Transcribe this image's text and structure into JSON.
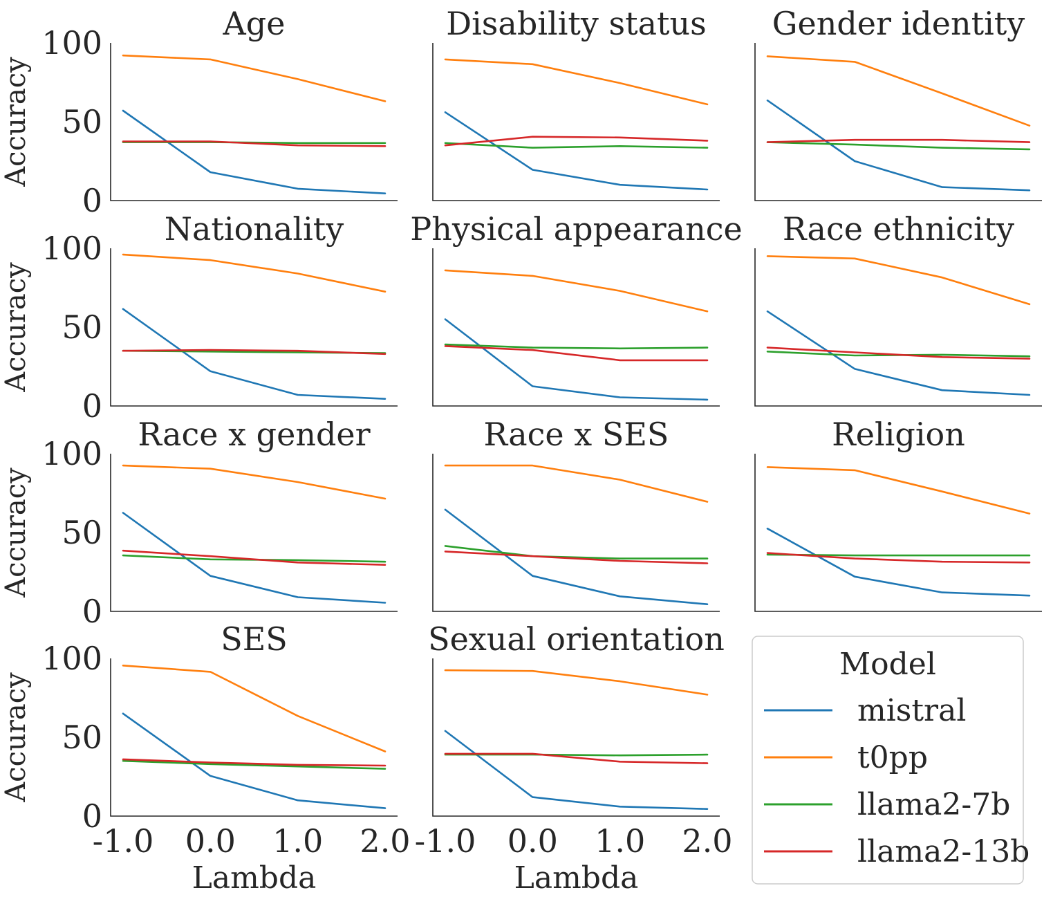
{
  "chart_data": {
    "type": "line",
    "x": [
      -1.0,
      0.0,
      1.0,
      2.0
    ],
    "xtick_labels": [
      "-1.0",
      "0.0",
      "1.0",
      "2.0"
    ],
    "ytick_labels": [
      "0",
      "50",
      "100"
    ],
    "ylim": [
      0,
      100
    ],
    "xlim": [
      -1.0,
      2.0
    ],
    "xlabel": "Lambda",
    "ylabel": "Accuracy",
    "grid": false,
    "legend": {
      "title": "Model",
      "placement": "bottom-right",
      "items": [
        "mistral",
        "t0pp",
        "llama2-7b",
        "llama2-13b"
      ]
    },
    "colors": {
      "mistral": "#1f77b4",
      "t0pp": "#ff7f0e",
      "llama2-7b": "#2ca02c",
      "llama2-13b": "#d62728"
    },
    "panels": [
      {
        "title": "Age",
        "series": [
          {
            "name": "mistral",
            "values": [
              57,
              18,
              7.5,
              4.5
            ]
          },
          {
            "name": "t0pp",
            "values": [
              92,
              89.5,
              77,
              63
            ]
          },
          {
            "name": "llama2-7b",
            "values": [
              37,
              37,
              36.5,
              36.5
            ]
          },
          {
            "name": "llama2-13b",
            "values": [
              37.5,
              37.5,
              35,
              34.5
            ]
          }
        ]
      },
      {
        "title": "Disability status",
        "series": [
          {
            "name": "mistral",
            "values": [
              56,
              19.5,
              10,
              7
            ]
          },
          {
            "name": "t0pp",
            "values": [
              89.5,
              86.5,
              74.5,
              61
            ]
          },
          {
            "name": "llama2-7b",
            "values": [
              36.5,
              33.5,
              34.5,
              33.5
            ]
          },
          {
            "name": "llama2-13b",
            "values": [
              35,
              40.5,
              40,
              38
            ]
          }
        ]
      },
      {
        "title": "Gender identity",
        "series": [
          {
            "name": "mistral",
            "values": [
              63.5,
              25,
              8.5,
              6.5
            ]
          },
          {
            "name": "t0pp",
            "values": [
              91.5,
              88,
              68,
              47.5
            ]
          },
          {
            "name": "llama2-7b",
            "values": [
              37,
              35.5,
              33.5,
              32.5
            ]
          },
          {
            "name": "llama2-13b",
            "values": [
              37,
              38.5,
              38.5,
              37
            ]
          }
        ]
      },
      {
        "title": "Nationality",
        "series": [
          {
            "name": "mistral",
            "values": [
              61.5,
              22,
              7,
              4.5
            ]
          },
          {
            "name": "t0pp",
            "values": [
              96,
              92.5,
              84,
              72.5
            ]
          },
          {
            "name": "llama2-7b",
            "values": [
              35,
              34.5,
              34,
              33.5
            ]
          },
          {
            "name": "llama2-13b",
            "values": [
              35,
              35.5,
              35,
              33
            ]
          }
        ]
      },
      {
        "title": "Physical appearance",
        "series": [
          {
            "name": "mistral",
            "values": [
              55,
              12.5,
              5.5,
              4
            ]
          },
          {
            "name": "t0pp",
            "values": [
              86,
              82.5,
              73,
              60
            ]
          },
          {
            "name": "llama2-7b",
            "values": [
              39,
              37,
              36.5,
              37
            ]
          },
          {
            "name": "llama2-13b",
            "values": [
              38,
              35.5,
              29,
              29
            ]
          }
        ]
      },
      {
        "title": "Race ethnicity",
        "series": [
          {
            "name": "mistral",
            "values": [
              60,
              23.5,
              10,
              7
            ]
          },
          {
            "name": "t0pp",
            "values": [
              95,
              93.5,
              81.5,
              64.5
            ]
          },
          {
            "name": "llama2-7b",
            "values": [
              34.5,
              32,
              32.5,
              31.5
            ]
          },
          {
            "name": "llama2-13b",
            "values": [
              37,
              34,
              31,
              30
            ]
          }
        ]
      },
      {
        "title": "Race x gender",
        "series": [
          {
            "name": "mistral",
            "values": [
              62.5,
              22.5,
              9,
              5.5
            ]
          },
          {
            "name": "t0pp",
            "values": [
              92.5,
              90.5,
              82,
              71.5
            ]
          },
          {
            "name": "llama2-7b",
            "values": [
              35.5,
              33,
              32.5,
              31.5
            ]
          },
          {
            "name": "llama2-13b",
            "values": [
              38.5,
              35,
              31,
              29.5
            ]
          }
        ]
      },
      {
        "title": "Race x SES",
        "series": [
          {
            "name": "mistral",
            "values": [
              64.5,
              22.5,
              9.5,
              4.5
            ]
          },
          {
            "name": "t0pp",
            "values": [
              92.5,
              92.5,
              83.5,
              69.5
            ]
          },
          {
            "name": "llama2-7b",
            "values": [
              41.5,
              35,
              33.5,
              33.5
            ]
          },
          {
            "name": "llama2-13b",
            "values": [
              38,
              35,
              32,
              30.5
            ]
          }
        ]
      },
      {
        "title": "Religion",
        "series": [
          {
            "name": "mistral",
            "values": [
              52.5,
              22,
              12,
              10
            ]
          },
          {
            "name": "t0pp",
            "values": [
              91.5,
              89.5,
              76,
              62
            ]
          },
          {
            "name": "llama2-7b",
            "values": [
              36,
              35.5,
              35.5,
              35.5
            ]
          },
          {
            "name": "llama2-13b",
            "values": [
              37,
              33.5,
              31.5,
              31
            ]
          }
        ]
      },
      {
        "title": "SES",
        "series": [
          {
            "name": "mistral",
            "values": [
              65,
              25.5,
              10,
              5
            ]
          },
          {
            "name": "t0pp",
            "values": [
              95.5,
              91.5,
              63.5,
              41
            ]
          },
          {
            "name": "llama2-7b",
            "values": [
              35,
              33,
              31.5,
              30
            ]
          },
          {
            "name": "llama2-13b",
            "values": [
              36,
              34,
              32.5,
              32
            ]
          }
        ]
      },
      {
        "title": "Sexual orientation",
        "series": [
          {
            "name": "mistral",
            "values": [
              54,
              12,
              6,
              4.5
            ]
          },
          {
            "name": "t0pp",
            "values": [
              92.5,
              92,
              85.5,
              77
            ]
          },
          {
            "name": "llama2-7b",
            "values": [
              39,
              39,
              38.5,
              39
            ]
          },
          {
            "name": "llama2-13b",
            "values": [
              39.5,
              39.5,
              34.5,
              33.5
            ]
          }
        ]
      }
    ]
  }
}
